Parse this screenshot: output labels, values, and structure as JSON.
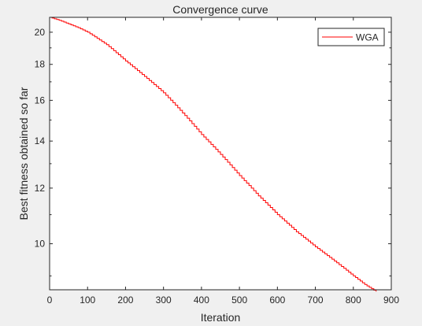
{
  "chart_data": {
    "type": "line",
    "title": "Convergence curve",
    "xlabel": "Iteration",
    "ylabel": "Best fitness obtained so far",
    "xlim": [
      0,
      900
    ],
    "ylim": [
      8.6,
      21.0
    ],
    "yscale": "log",
    "grid": false,
    "legend_location": "top-right",
    "x_ticks": [
      0,
      100,
      200,
      300,
      400,
      500,
      600,
      700,
      800,
      900
    ],
    "y_ticks": [
      10,
      12,
      14,
      16,
      18,
      20
    ],
    "x_tick_labels": [
      "0",
      "100",
      "200",
      "300",
      "400",
      "500",
      "600",
      "700",
      "800",
      "900"
    ],
    "y_tick_labels": [
      "10",
      "12",
      "14",
      "16",
      "18",
      "20"
    ],
    "series": [
      {
        "name": "WGA",
        "color": "#ff0000",
        "x": [
          0,
          25,
          50,
          75,
          100,
          125,
          150,
          175,
          200,
          250,
          300,
          350,
          400,
          450,
          500,
          550,
          600,
          650,
          700,
          750,
          800,
          830,
          860
        ],
        "y": [
          21.0,
          20.8,
          20.55,
          20.3,
          20.0,
          19.6,
          19.2,
          18.7,
          18.2,
          17.3,
          16.4,
          15.35,
          14.3,
          13.4,
          12.5,
          11.7,
          11.0,
          10.4,
          9.9,
          9.45,
          9.0,
          8.75,
          8.55
        ]
      }
    ]
  }
}
